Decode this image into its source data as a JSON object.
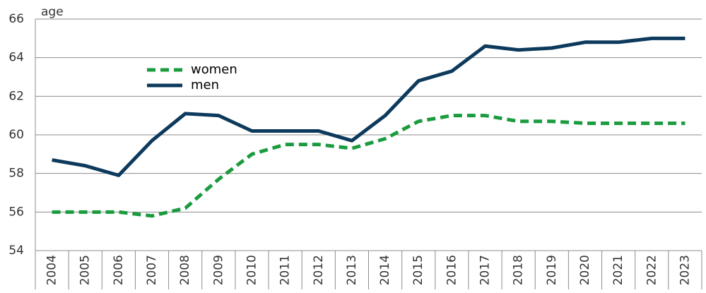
{
  "chart_data": {
    "type": "line",
    "y_label": "age",
    "categories": [
      "2004",
      "2005",
      "2006",
      "2007",
      "2008",
      "2009",
      "2010",
      "2011",
      "2012",
      "2013",
      "2014",
      "2015",
      "2016",
      "2017",
      "2018",
      "2019",
      "2020",
      "2021",
      "2022",
      "2023"
    ],
    "series": [
      {
        "name": "women",
        "color": "#1a9b3e",
        "dashed": true,
        "values": [
          56.0,
          56.0,
          56.0,
          55.8,
          56.2,
          57.7,
          59.0,
          59.5,
          59.5,
          59.3,
          59.8,
          60.7,
          61.0,
          61.0,
          60.7,
          60.7,
          60.6,
          60.6,
          60.6,
          60.6
        ]
      },
      {
        "name": "men",
        "color": "#0d3a5c",
        "dashed": false,
        "values": [
          58.7,
          58.4,
          57.9,
          59.7,
          61.1,
          61.0,
          60.2,
          60.2,
          60.2,
          59.7,
          61.0,
          62.8,
          63.3,
          64.6,
          64.4,
          64.5,
          64.8,
          64.8,
          65.0,
          65.0
        ]
      }
    ],
    "ylim": [
      54,
      66
    ],
    "yticks": [
      54,
      56,
      58,
      60,
      62,
      64,
      66
    ],
    "grid": true
  }
}
